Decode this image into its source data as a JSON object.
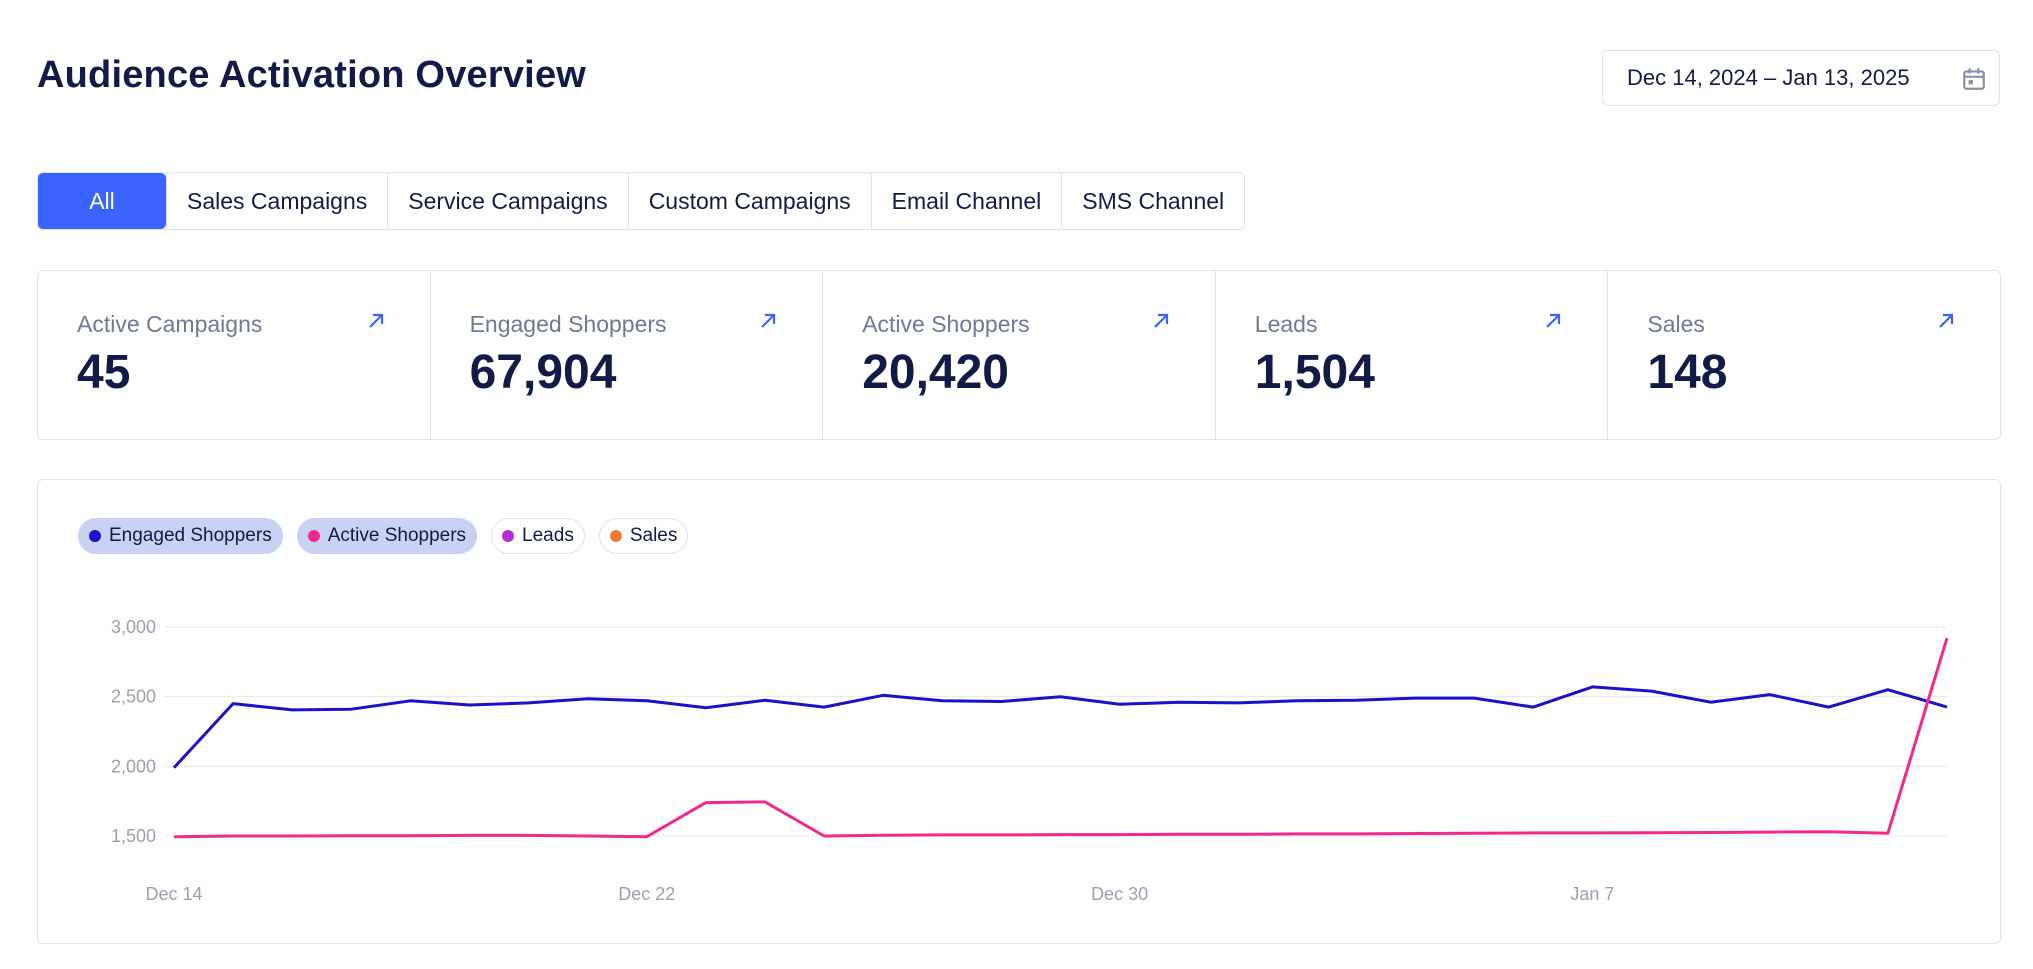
{
  "header": {
    "title": "Audience Activation Overview",
    "date_range": "Dec 14, 2024 – Jan 13, 2025",
    "calendar_icon": "calendar-icon"
  },
  "tabs": [
    {
      "label": "All",
      "active": true
    },
    {
      "label": "Sales Campaigns",
      "active": false
    },
    {
      "label": "Service Campaigns",
      "active": false
    },
    {
      "label": "Custom Campaigns",
      "active": false
    },
    {
      "label": "Email Channel",
      "active": false
    },
    {
      "label": "SMS Channel",
      "active": false
    }
  ],
  "kpis": [
    {
      "label": "Active Campaigns",
      "value": "45"
    },
    {
      "label": "Engaged Shoppers",
      "value": "67,904"
    },
    {
      "label": "Active Shoppers",
      "value": "20,420"
    },
    {
      "label": "Leads",
      "value": "1,504"
    },
    {
      "label": "Sales",
      "value": "148"
    }
  ],
  "colors": {
    "accent": "#3a63ff",
    "engaged": "#1a12c9",
    "active": "#f2288e",
    "leads": "#b52ad9",
    "sales": "#f47b33"
  },
  "legend": [
    {
      "label": "Engaged Shoppers",
      "color": "#1a12c9",
      "selected": true
    },
    {
      "label": "Active Shoppers",
      "color": "#f2288e",
      "selected": true
    },
    {
      "label": "Leads",
      "color": "#b52ad9",
      "selected": false
    },
    {
      "label": "Sales",
      "color": "#f47b33",
      "selected": false
    }
  ],
  "chart_data": {
    "type": "line",
    "title": "",
    "xlabel": "",
    "ylabel": "",
    "x": [
      "Dec 14",
      "Dec 15",
      "Dec 16",
      "Dec 17",
      "Dec 18",
      "Dec 19",
      "Dec 20",
      "Dec 21",
      "Dec 22",
      "Dec 23",
      "Dec 24",
      "Dec 25",
      "Dec 26",
      "Dec 27",
      "Dec 28",
      "Dec 29",
      "Dec 30",
      "Dec 31",
      "Jan 1",
      "Jan 2",
      "Jan 3",
      "Jan 4",
      "Jan 5",
      "Jan 6",
      "Jan 7",
      "Jan 8",
      "Jan 9",
      "Jan 10",
      "Jan 11",
      "Jan 12",
      "Jan 13"
    ],
    "x_ticks": [
      "Dec 14",
      "Dec 22",
      "Dec 30",
      "Jan 7"
    ],
    "y_ticks": [
      "1,500",
      "2,000",
      "2,500",
      "3,000"
    ],
    "ylim": [
      1500,
      3000
    ],
    "grid": true,
    "series": [
      {
        "name": "Engaged Shoppers",
        "color": "#1a12c9",
        "values": [
          1990,
          2450,
          2405,
          2410,
          2470,
          2440,
          2455,
          2485,
          2470,
          2420,
          2475,
          2425,
          2510,
          2470,
          2465,
          2500,
          2445,
          2460,
          2455,
          2470,
          2475,
          2490,
          2490,
          2425,
          2570,
          2540,
          2460,
          2515,
          2425,
          2550,
          2425
        ]
      },
      {
        "name": "Active Shoppers",
        "color": "#f2288e",
        "values": [
          1495,
          1500,
          1500,
          1502,
          1502,
          1504,
          1504,
          1500,
          1495,
          1740,
          1745,
          1500,
          1505,
          1508,
          1508,
          1510,
          1510,
          1512,
          1512,
          1515,
          1515,
          1518,
          1520,
          1522,
          1522,
          1523,
          1525,
          1528,
          1530,
          1520,
          2920
        ]
      }
    ]
  }
}
